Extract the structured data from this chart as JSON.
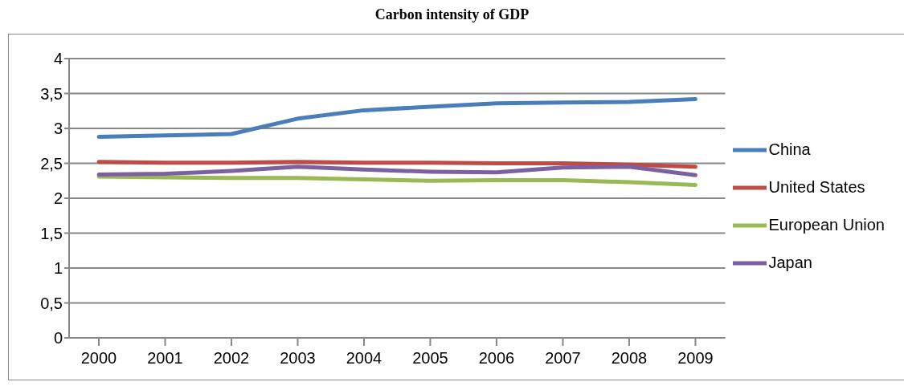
{
  "chart_data": {
    "type": "line",
    "title": "Carbon intensity of GDP",
    "categories": [
      "2000",
      "2001",
      "2002",
      "2003",
      "2004",
      "2005",
      "2006",
      "2007",
      "2008",
      "2009"
    ],
    "series": [
      {
        "name": "China",
        "color": "#4a7ebb",
        "values": [
          2.88,
          2.9,
          2.92,
          3.14,
          3.26,
          3.31,
          3.36,
          3.37,
          3.38,
          3.42
        ]
      },
      {
        "name": "United States",
        "color": "#be4b48",
        "values": [
          2.52,
          2.51,
          2.51,
          2.52,
          2.51,
          2.51,
          2.5,
          2.5,
          2.48,
          2.45
        ]
      },
      {
        "name": "European Union",
        "color": "#98b954",
        "values": [
          2.31,
          2.3,
          2.29,
          2.29,
          2.27,
          2.25,
          2.26,
          2.26,
          2.23,
          2.19
        ]
      },
      {
        "name": "Japan",
        "color": "#7d60a0",
        "values": [
          2.34,
          2.35,
          2.39,
          2.45,
          2.41,
          2.38,
          2.37,
          2.44,
          2.45,
          2.33
        ]
      }
    ],
    "ylim": [
      0,
      4
    ],
    "yticks": [
      0,
      {
        "value": 0.5,
        "label": "0,5"
      },
      1,
      {
        "value": 1.5,
        "label": "1,5"
      },
      2,
      {
        "value": 2.5,
        "label": "2,5"
      },
      3,
      {
        "value": 3.5,
        "label": "3,5"
      },
      4
    ],
    "grid": "y",
    "legend": "right",
    "marker": "none",
    "line_style": "solid"
  }
}
